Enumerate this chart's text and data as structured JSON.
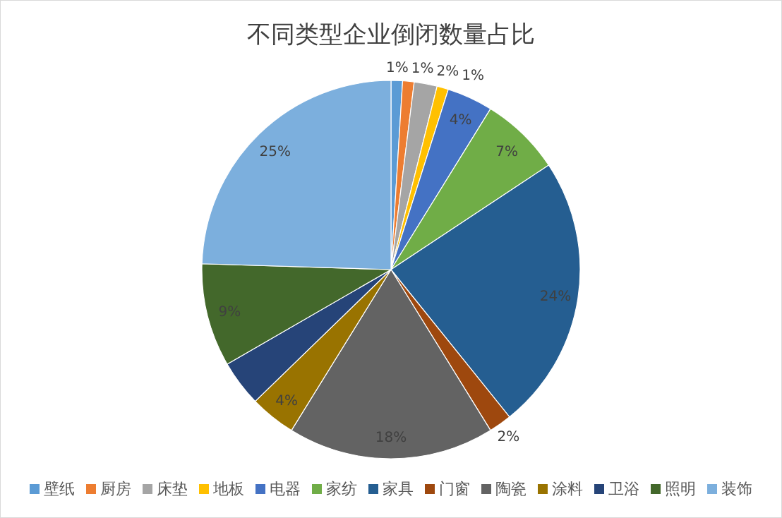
{
  "chart_data": {
    "type": "pie",
    "title": "不同类型企业倒闭数量占比",
    "categories": [
      "壁纸",
      "厨房",
      "床垫",
      "地板",
      "电器",
      "家纺",
      "家具",
      "门窗",
      "陶瓷",
      "涂料",
      "卫浴",
      "照明",
      "装饰"
    ],
    "values": [
      1,
      1,
      2,
      1,
      4,
      7,
      24,
      2,
      18,
      4,
      4,
      9,
      25
    ],
    "value_labels": [
      "1%",
      "1%",
      "2%",
      "1%",
      "4%",
      "7%",
      "24%",
      "2%",
      "18%",
      "4%",
      null,
      "9%",
      "25%"
    ],
    "colors": [
      "#5b9bd5",
      "#ed7d31",
      "#a5a5a5",
      "#ffc000",
      "#4472c4",
      "#70ad47",
      "#255e91",
      "#9e480e",
      "#636363",
      "#997300",
      "#264478",
      "#43682b",
      "#7cafdd"
    ],
    "legend": "bottom"
  }
}
